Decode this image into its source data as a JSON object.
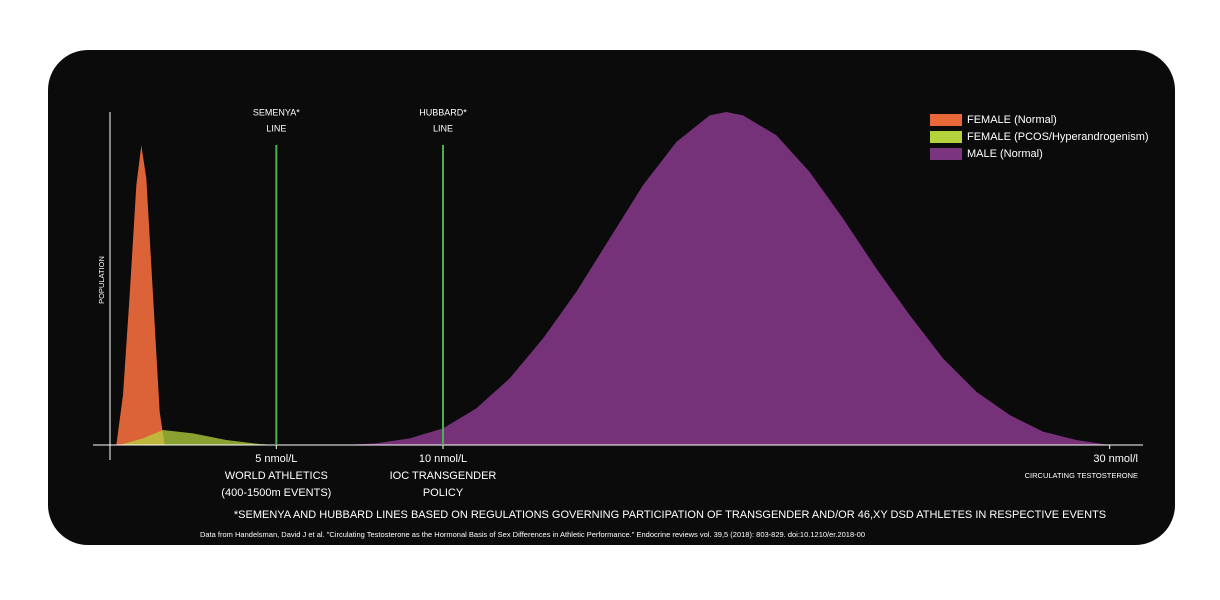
{
  "chart_data": {
    "type": "area",
    "y_label": "POPULATION",
    "x_label": "CIRCULATING TESTOSTERONE",
    "xlim": [
      -0.5,
      31
    ],
    "ylim": [
      0,
      100
    ],
    "xticks": [
      {
        "value": 5,
        "label": "5 nmol/L"
      },
      {
        "value": 10,
        "label": "10 nmol/L"
      },
      {
        "value": 30,
        "label": "30 nmol/l"
      }
    ],
    "xtick_notes": [
      [
        "WORLD ATHLETICS",
        "(400-1500m EVENTS)"
      ],
      [
        "IOC TRANSGENDER",
        "POLICY"
      ],
      null
    ],
    "reference_lines": [
      {
        "x": 5,
        "label": [
          "SEMENYA*",
          "LINE"
        ],
        "color": "#4caf50"
      },
      {
        "x": 10,
        "label": [
          "HUBBARD*",
          "LINE"
        ],
        "color": "#4caf50"
      }
    ],
    "legend_position": "upper right",
    "series": [
      {
        "name": "FEMALE (Normal)",
        "color": "#e8683a",
        "x": [
          0.2,
          0.4,
          0.6,
          0.8,
          0.95,
          1.1,
          1.3,
          1.5,
          1.65
        ],
        "values": [
          0,
          15,
          45,
          78,
          90,
          80,
          45,
          10,
          0
        ]
      },
      {
        "name": "FEMALE (PCOS/Hyperandrogenism)",
        "color": "#b5d33d",
        "x": [
          0.3,
          1,
          1.6,
          2.5,
          3.5,
          4.5,
          5
        ],
        "values": [
          0,
          2,
          4.5,
          3.5,
          1.5,
          0.3,
          0
        ]
      },
      {
        "name": "MALE (Normal)",
        "color": "#7b3580",
        "x": [
          7,
          8,
          9,
          10,
          11,
          12,
          13,
          14,
          15,
          16,
          17,
          18,
          18.5,
          19,
          20,
          21,
          22,
          23,
          24,
          25,
          26,
          27,
          28,
          29,
          30
        ],
        "values": [
          0,
          0.5,
          2,
          5,
          11,
          20,
          32,
          46,
          62,
          78,
          91,
          99,
          100,
          99,
          93,
          82,
          68,
          53,
          39,
          26,
          16,
          9,
          4,
          1.5,
          0
        ]
      }
    ],
    "footnote": "*SEMENYA AND HUBBARD LINES BASED ON REGULATIONS GOVERNING PARTICIPATION OF TRANSGENDER AND/OR 46,XY DSD ATHLETES IN RESPECTIVE EVENTS",
    "source": "Data from Handelsman, David J et al. \"Circulating Testosterone as the Hormonal Basis of Sex Differences in Athletic Performance.\" Endocrine reviews vol. 39,5 (2018): 803-829. doi:10.1210/er.2018-00"
  }
}
